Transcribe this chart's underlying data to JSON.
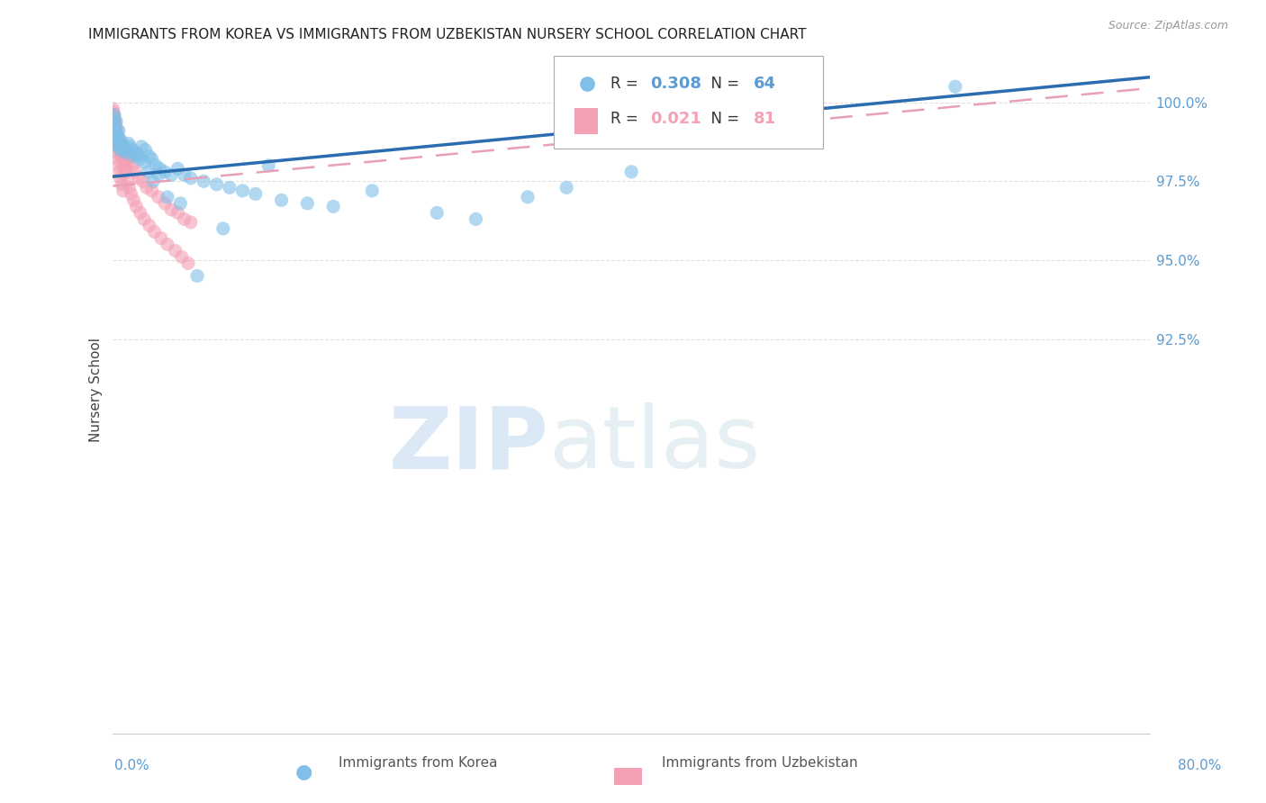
{
  "title": "IMMIGRANTS FROM KOREA VS IMMIGRANTS FROM UZBEKISTAN NURSERY SCHOOL CORRELATION CHART",
  "source": "Source: ZipAtlas.com",
  "ylabel": "Nursery School",
  "korea_color": "#7fbfe8",
  "uzbekistan_color": "#f4a0b5",
  "trendline_korea_color": "#2b6cb0",
  "trendline_uzbekistan_color": "#e8a0b8",
  "watermark_zip": "ZIP",
  "watermark_atlas": "atlas",
  "xmin": 0.0,
  "xmax": 80.0,
  "ymin": 80.0,
  "ymax": 101.8,
  "yticks": [
    92.5,
    95.0,
    97.5,
    100.0
  ],
  "background_color": "#ffffff",
  "grid_color": "#dddddd",
  "title_color": "#222222",
  "tick_color": "#5b9bd5",
  "korea_R": "0.308",
  "korea_N": "64",
  "uzbekistan_R": "0.021",
  "uzbekistan_N": "81",
  "korea_trend_x0": 0.0,
  "korea_trend_y0": 97.65,
  "korea_trend_x1": 80.0,
  "korea_trend_y1": 100.8,
  "uzb_trend_x0": 0.0,
  "uzb_trend_y0": 97.35,
  "uzb_trend_x1": 80.0,
  "uzb_trend_y1": 100.45,
  "korea_scatter_x": [
    0.05,
    0.08,
    0.1,
    0.12,
    0.15,
    0.18,
    0.2,
    0.25,
    0.28,
    0.3,
    0.35,
    0.4,
    0.45,
    0.5,
    0.55,
    0.6,
    0.7,
    0.8,
    0.9,
    1.0,
    1.1,
    1.2,
    1.3,
    1.5,
    1.7,
    2.0,
    2.2,
    2.5,
    2.8,
    3.0,
    3.3,
    3.6,
    4.0,
    4.5,
    5.0,
    5.5,
    6.0,
    7.0,
    8.0,
    9.0,
    10.0,
    11.0,
    13.0,
    15.0,
    17.0,
    20.0,
    25.0,
    28.0,
    32.0,
    35.0,
    40.0,
    1.6,
    1.8,
    2.1,
    2.4,
    2.7,
    3.1,
    3.5,
    4.2,
    5.2,
    6.5,
    8.5,
    12.0,
    65.0
  ],
  "korea_scatter_y": [
    99.5,
    99.2,
    99.6,
    99.1,
    99.3,
    99.0,
    98.8,
    99.4,
    98.9,
    99.0,
    98.7,
    98.9,
    99.1,
    98.6,
    98.5,
    98.8,
    98.7,
    98.6,
    98.5,
    98.4,
    98.5,
    98.7,
    98.6,
    98.5,
    98.4,
    98.3,
    98.6,
    98.5,
    98.3,
    98.2,
    98.0,
    97.9,
    97.8,
    97.7,
    97.9,
    97.7,
    97.6,
    97.5,
    97.4,
    97.3,
    97.2,
    97.1,
    96.9,
    96.8,
    96.7,
    97.2,
    96.5,
    96.3,
    97.0,
    97.3,
    97.8,
    98.3,
    98.4,
    98.2,
    98.1,
    97.8,
    97.5,
    97.7,
    97.0,
    96.8,
    94.5,
    96.0,
    98.0,
    100.5
  ],
  "uzbekistan_scatter_x": [
    0.01,
    0.02,
    0.03,
    0.04,
    0.05,
    0.06,
    0.07,
    0.08,
    0.09,
    0.1,
    0.12,
    0.14,
    0.16,
    0.18,
    0.2,
    0.22,
    0.25,
    0.28,
    0.3,
    0.35,
    0.4,
    0.45,
    0.5,
    0.55,
    0.6,
    0.7,
    0.8,
    0.9,
    1.0,
    1.1,
    1.2,
    1.3,
    1.5,
    1.7,
    2.0,
    2.3,
    2.6,
    3.0,
    3.5,
    4.0,
    4.5,
    5.0,
    5.5,
    6.0,
    0.15,
    0.23,
    0.33,
    0.43,
    0.53,
    0.63,
    0.73,
    0.83,
    0.93,
    1.03,
    1.15,
    1.25,
    1.4,
    1.6,
    1.8,
    2.1,
    2.4,
    2.8,
    3.2,
    3.7,
    4.2,
    4.8,
    5.3,
    5.8,
    0.04,
    0.08,
    0.12,
    0.17,
    0.22,
    0.27,
    0.32,
    0.38,
    0.44,
    0.5,
    0.58,
    0.68,
    0.78
  ],
  "uzbekistan_scatter_y": [
    99.8,
    99.7,
    99.6,
    99.5,
    99.4,
    99.5,
    99.3,
    99.6,
    99.4,
    99.5,
    99.3,
    99.4,
    99.2,
    99.1,
    99.3,
    99.0,
    99.2,
    98.9,
    99.1,
    98.8,
    98.9,
    98.7,
    98.8,
    98.6,
    98.5,
    98.4,
    98.3,
    98.5,
    98.2,
    98.4,
    98.1,
    98.3,
    98.0,
    97.8,
    97.6,
    97.5,
    97.3,
    97.2,
    97.0,
    96.8,
    96.6,
    96.5,
    96.3,
    96.2,
    99.0,
    99.1,
    98.7,
    98.6,
    98.5,
    98.3,
    98.2,
    98.0,
    97.9,
    97.8,
    97.5,
    97.3,
    97.1,
    96.9,
    96.7,
    96.5,
    96.3,
    96.1,
    95.9,
    95.7,
    95.5,
    95.3,
    95.1,
    94.9,
    99.6,
    99.4,
    99.2,
    99.0,
    98.8,
    98.6,
    98.4,
    98.2,
    98.0,
    97.8,
    97.6,
    97.4,
    97.2
  ]
}
